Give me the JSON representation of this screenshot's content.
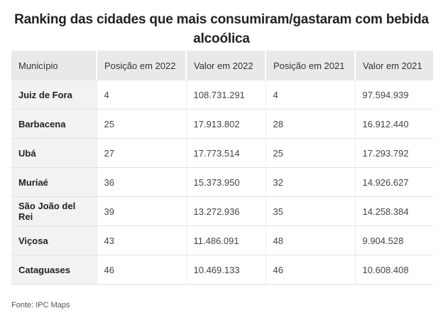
{
  "title": "Ranking das cidades que mais consumiram/gastaram com bebida alcoólica",
  "table": {
    "headers": [
      "Município",
      "Posição em 2022",
      "Valor em 2022",
      "Posição em 2021",
      "Valor em 2021"
    ],
    "rows": [
      [
        "Juiz de Fora",
        "4",
        "108.731.291",
        "4",
        "97.594.939"
      ],
      [
        "Barbacena",
        "25",
        "17.913.802",
        "28",
        "16.912.440"
      ],
      [
        "Ubá",
        "27",
        "17.773.514",
        "25",
        "17.293.792"
      ],
      [
        "Muriaé",
        "36",
        "15.373.950",
        "32",
        "14.926.627"
      ],
      [
        "São João del Rei",
        "39",
        "13.272.936",
        "35",
        "14.258.384"
      ],
      [
        "Viçosa",
        "43",
        "11.486.091",
        "48",
        "9.904.528"
      ],
      [
        "Cataguases",
        "46",
        "10.469.133",
        "46",
        "10.608.408"
      ]
    ]
  },
  "source": "Fonte: IPC Maps"
}
